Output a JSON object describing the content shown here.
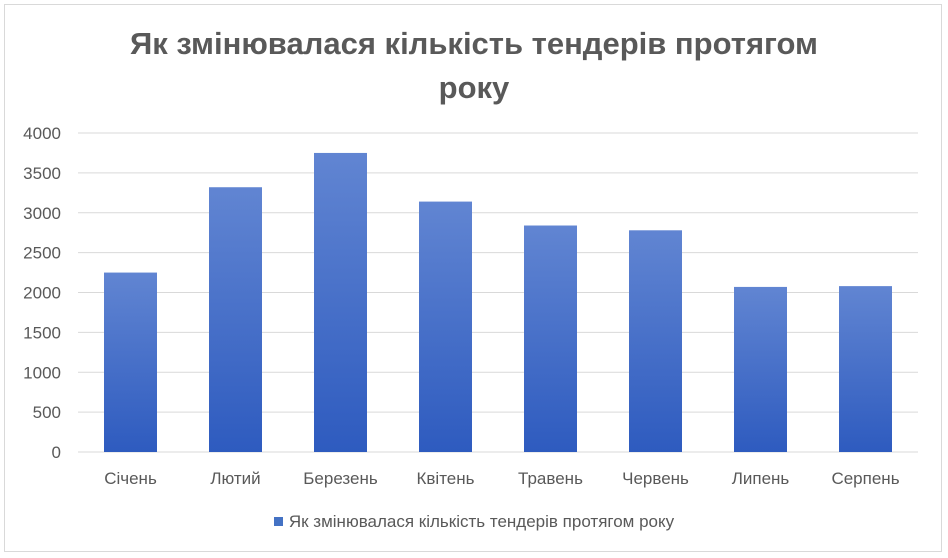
{
  "chart_data": {
    "type": "bar",
    "title_lines": [
      "Як змінювалася кількість тендерів протягом",
      "року"
    ],
    "categories": [
      "Січень",
      "Лютий",
      "Березень",
      "Квітень",
      "Травень",
      "Червень",
      "Липень",
      "Серпень"
    ],
    "series": [
      {
        "name": "Як змінювалася кількість тендерів протягом року",
        "values": [
          2250,
          3320,
          3750,
          3140,
          2840,
          2780,
          2070,
          2080
        ],
        "color_top": "#6185d2",
        "color_bottom": "#2e5bbf"
      }
    ],
    "ylim": [
      0,
      4000
    ],
    "yticks": [
      0,
      500,
      1000,
      1500,
      2000,
      2500,
      3000,
      3500,
      4000
    ],
    "grid": true,
    "legend_position": "bottom"
  }
}
